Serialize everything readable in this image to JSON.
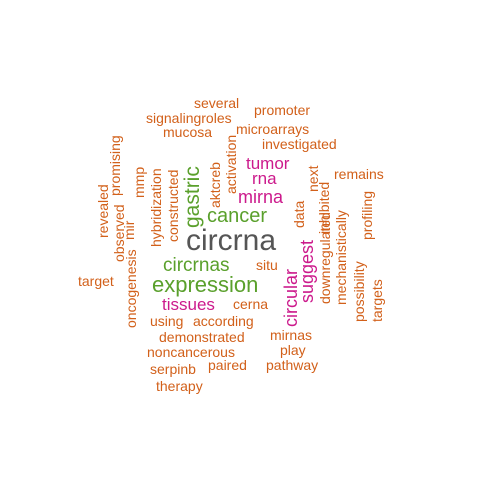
{
  "colors": {
    "big": "#555555",
    "green": "#5aa02c",
    "magenta": "#cc1a8c",
    "orange": "#d2601a"
  },
  "words": [
    {
      "text": "circrna",
      "color": "big"
    },
    {
      "text": "expression",
      "color": "green"
    },
    {
      "text": "circrnas",
      "color": "green"
    },
    {
      "text": "cancer",
      "color": "green"
    },
    {
      "text": "gastric",
      "color": "green"
    },
    {
      "text": "tissues",
      "color": "magenta"
    },
    {
      "text": "mirna",
      "color": "magenta"
    },
    {
      "text": "tumor",
      "color": "magenta"
    },
    {
      "text": "rna",
      "color": "magenta"
    },
    {
      "text": "circular",
      "color": "magenta"
    },
    {
      "text": "suggest",
      "color": "magenta"
    },
    {
      "text": "several",
      "color": "orange"
    },
    {
      "text": "promoter",
      "color": "orange"
    },
    {
      "text": "signalingroles",
      "color": "orange"
    },
    {
      "text": "mucosa",
      "color": "orange"
    },
    {
      "text": "microarrays",
      "color": "orange"
    },
    {
      "text": "investigated",
      "color": "orange"
    },
    {
      "text": "remains",
      "color": "orange"
    },
    {
      "text": "target",
      "color": "orange"
    },
    {
      "text": "cerna",
      "color": "orange"
    },
    {
      "text": "situ",
      "color": "orange"
    },
    {
      "text": "using",
      "color": "orange"
    },
    {
      "text": "according",
      "color": "orange"
    },
    {
      "text": "demonstrated",
      "color": "orange"
    },
    {
      "text": "mirnas",
      "color": "orange"
    },
    {
      "text": "noncancerous",
      "color": "orange"
    },
    {
      "text": "play",
      "color": "orange"
    },
    {
      "text": "serpinb",
      "color": "orange"
    },
    {
      "text": "paired",
      "color": "orange"
    },
    {
      "text": "pathway",
      "color": "orange"
    },
    {
      "text": "therapy",
      "color": "orange"
    },
    {
      "text": "promising",
      "color": "orange"
    },
    {
      "text": "revealed",
      "color": "orange"
    },
    {
      "text": "observed",
      "color": "orange"
    },
    {
      "text": "mmp",
      "color": "orange"
    },
    {
      "text": "mir",
      "color": "orange"
    },
    {
      "text": "hybridization",
      "color": "orange"
    },
    {
      "text": "constructed",
      "color": "orange"
    },
    {
      "text": "aktcreb",
      "color": "orange"
    },
    {
      "text": "activation",
      "color": "orange"
    },
    {
      "text": "oncogenesis",
      "color": "orange"
    },
    {
      "text": "data",
      "color": "orange"
    },
    {
      "text": "next",
      "color": "orange"
    },
    {
      "text": "downregulated",
      "color": "orange"
    },
    {
      "text": "inhibited",
      "color": "orange"
    },
    {
      "text": "mechanistically",
      "color": "orange"
    },
    {
      "text": "possibility",
      "color": "orange"
    },
    {
      "text": "profiling",
      "color": "orange"
    },
    {
      "text": "targets",
      "color": "orange"
    }
  ]
}
